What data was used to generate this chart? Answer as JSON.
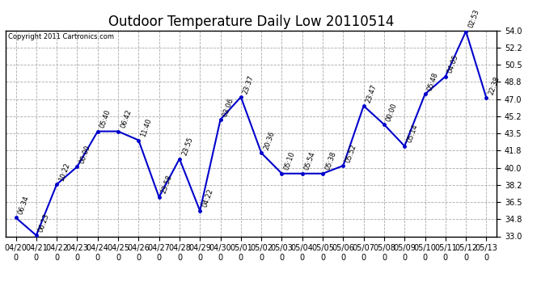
{
  "title": "Outdoor Temperature Daily Low 20110514",
  "copyright": "Copyright 2011 Cartronics.com",
  "x_labels": [
    "04/20",
    "04/21",
    "04/22",
    "04/23",
    "04/24",
    "04/25",
    "04/26",
    "04/27",
    "04/28",
    "04/29",
    "04/30",
    "05/01",
    "05/02",
    "05/03",
    "05/04",
    "05/05",
    "05/06",
    "05/07",
    "05/08",
    "05/09",
    "05/10",
    "05/11",
    "05/12",
    "05/13"
  ],
  "y_values": [
    34.9,
    33.1,
    38.3,
    40.1,
    43.7,
    43.7,
    42.8,
    37.0,
    40.9,
    35.6,
    44.9,
    47.2,
    41.5,
    39.4,
    39.4,
    39.4,
    40.2,
    46.3,
    44.4,
    42.2,
    47.5,
    49.3,
    53.9,
    47.1
  ],
  "point_labels": [
    "06:34",
    "06:23",
    "10:22",
    "00:00",
    "05:40",
    "06:42",
    "11:40",
    "23:58",
    "23:55",
    "04:22",
    "03:06",
    "23:37",
    "20:36",
    "05:10",
    "05:54",
    "05:38",
    "05:52",
    "23:47",
    "00:00",
    "05:14",
    "05:48",
    "04:05",
    "02:53",
    "22:38"
  ],
  "ylim_min": 33.0,
  "ylim_max": 54.0,
  "yticks": [
    33.0,
    34.8,
    36.5,
    38.2,
    40.0,
    41.8,
    43.5,
    45.2,
    47.0,
    48.8,
    50.5,
    52.2,
    54.0
  ],
  "line_color": "#0000cc",
  "marker_color": "#0000cc",
  "bg_color": "#ffffff",
  "grid_color": "#aaaaaa",
  "title_fontsize": 12,
  "tick_fontsize": 7,
  "annot_fontsize": 6
}
